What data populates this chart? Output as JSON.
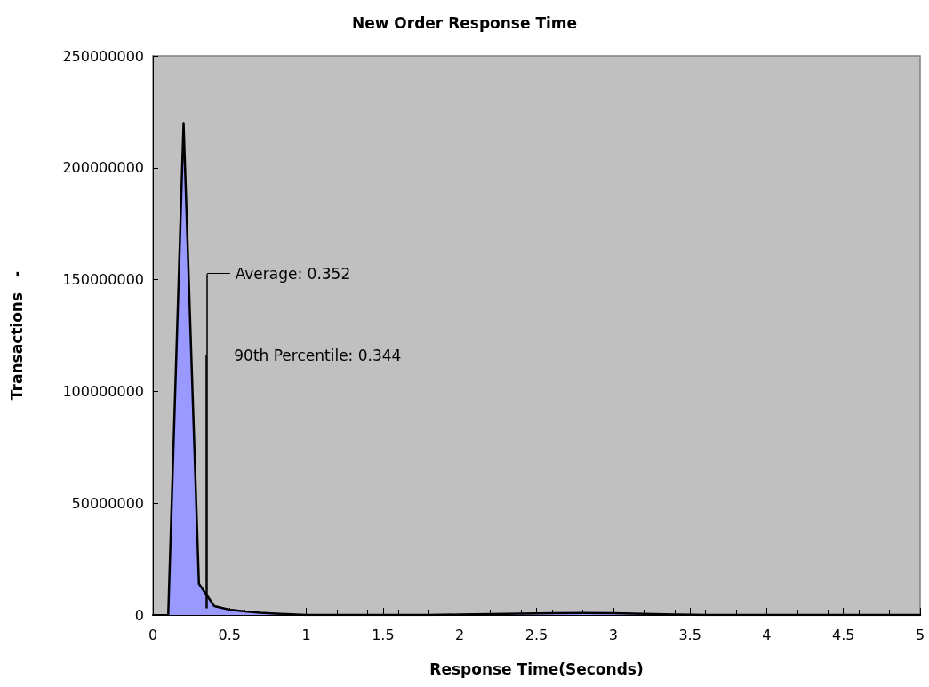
{
  "chart_data": {
    "type": "area",
    "title": "New Order Response Time",
    "xlabel": "Response Time(Seconds)",
    "ylabel": "Transactions　-",
    "x": [
      0.1,
      0.2,
      0.3,
      0.4,
      0.5,
      0.6,
      0.7,
      0.8,
      0.9,
      1.0,
      1.2,
      1.4,
      1.6,
      1.8,
      2.0,
      2.2,
      2.4,
      2.6,
      2.8,
      3.0,
      3.2,
      3.4,
      3.6,
      3.8,
      4.0,
      4.5,
      5.0
    ],
    "series": [
      {
        "color": "#9999ff",
        "values": [
          0,
          220000000,
          14000000,
          4000000,
          2400000,
          1600000,
          1000000,
          600000,
          300000,
          0,
          0,
          0,
          0,
          0,
          200000,
          400000,
          600000,
          800000,
          900000,
          800000,
          500000,
          200000,
          0,
          0,
          0,
          0,
          0
        ]
      }
    ],
    "xlim": [
      0,
      5
    ],
    "xticks": [
      0,
      0.5,
      1,
      1.5,
      2,
      2.5,
      3,
      3.5,
      4,
      4.5,
      5
    ],
    "ylim": [
      0,
      250000000
    ],
    "yticks": [
      0,
      50000000,
      100000000,
      150000000,
      200000000,
      250000000
    ],
    "grid": false,
    "marker": "none",
    "line_style": "solid",
    "ref_lines": [
      {
        "axis": "x",
        "value": 0.352,
        "label": "Average: 0.352"
      },
      {
        "axis": "x",
        "value": 0.344,
        "label": "90th Percentile: 0.344"
      }
    ]
  }
}
